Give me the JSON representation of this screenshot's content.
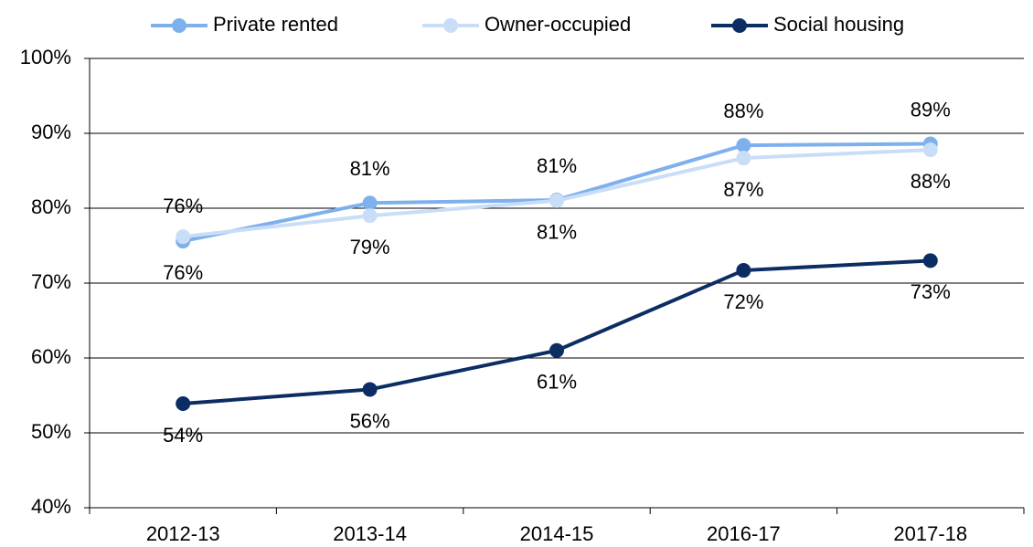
{
  "chart_data": {
    "type": "line",
    "categories": [
      "2012-13",
      "2013-14",
      "2014-15",
      "2016-17",
      "2017-18"
    ],
    "series": [
      {
        "name": "Private rented",
        "color": "#7eb0ed",
        "values": [
          75.6,
          80.7,
          81.1,
          88.4,
          88.6
        ],
        "value_labels": [
          "76%",
          "81%",
          "81%",
          "88%",
          "89%"
        ]
      },
      {
        "name": "Owner-occupied",
        "color": "#c9ddf7",
        "values": [
          76.2,
          79.0,
          81.0,
          86.7,
          87.8
        ],
        "value_labels": [
          "76%",
          "79%",
          "81%",
          "87%",
          "88%"
        ]
      },
      {
        "name": "Social housing",
        "color": "#0c2d63",
        "values": [
          53.9,
          55.8,
          61.0,
          71.7,
          73.0
        ],
        "value_labels": [
          "54%",
          "56%",
          "61%",
          "72%",
          "73%"
        ]
      }
    ],
    "ylim": [
      40,
      100
    ],
    "yticks": [
      {
        "value": 40,
        "label": "40%"
      },
      {
        "value": 50,
        "label": "50%"
      },
      {
        "value": 60,
        "label": "60%"
      },
      {
        "value": 70,
        "label": "70%"
      },
      {
        "value": 80,
        "label": "80%"
      },
      {
        "value": 90,
        "label": "90%"
      },
      {
        "value": 100,
        "label": "100%"
      }
    ],
    "grid": true,
    "legend": "top"
  }
}
